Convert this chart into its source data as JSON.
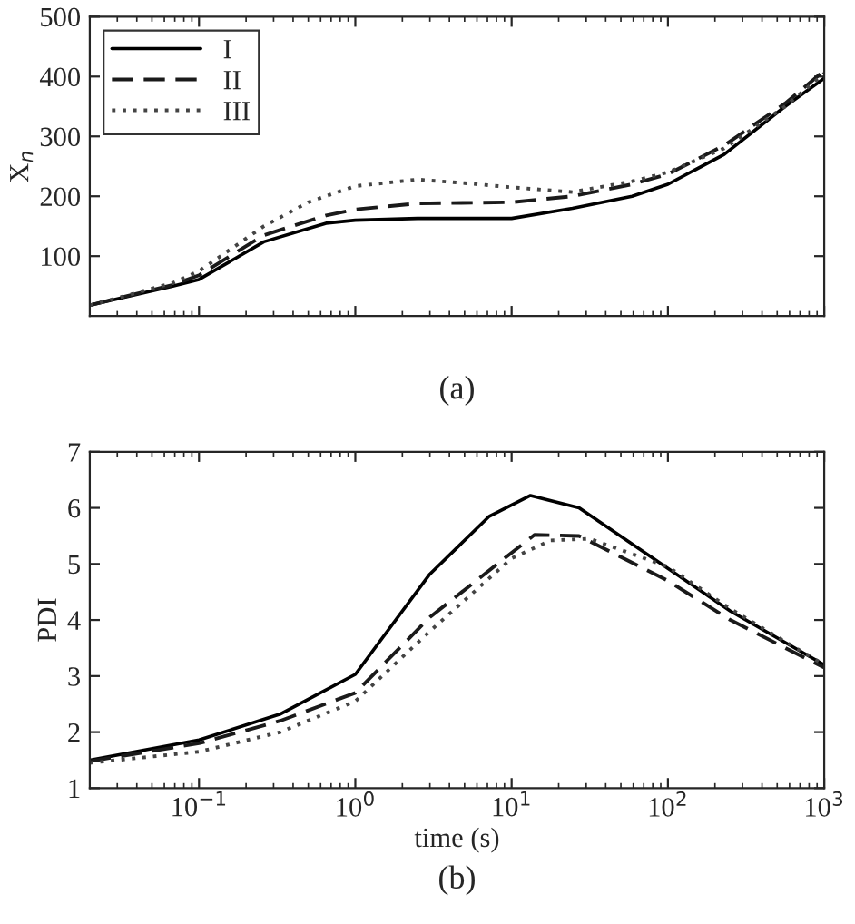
{
  "chart_data": [
    {
      "type": "line",
      "ylabel": "X$_{n}$",
      "annotations": [
        "(a)"
      ],
      "log": "x",
      "xlim": [
        0.02,
        1000
      ],
      "ylim": [
        0,
        500
      ],
      "yticks": [
        100,
        200,
        300,
        400,
        500
      ],
      "tick_labels": "y",
      "legend": "top left",
      "grid": false,
      "series": [
        {
          "name": "I",
          "color": "#000000",
          "line_style": "solid",
          "x": [
            0.02,
            0.068,
            0.1,
            0.26,
            0.65,
            1,
            2.5,
            10,
            24.5,
            59,
            100,
            229,
            562,
            1000
          ],
          "values": [
            18,
            50,
            61,
            124,
            155,
            160,
            163,
            163,
            180,
            200,
            220,
            270,
            350,
            397
          ]
        },
        {
          "name": "II",
          "color": "#1a1a1a",
          "line_style": "dashed",
          "x": [
            0.02,
            0.068,
            0.1,
            0.26,
            0.65,
            1,
            2.5,
            10,
            24.5,
            59,
            100,
            229,
            562,
            1000
          ],
          "values": [
            18,
            52,
            68,
            135,
            168,
            178,
            188,
            190,
            200,
            220,
            237,
            285,
            355,
            410
          ]
        },
        {
          "name": "III",
          "color": "#444444",
          "line_style": "dotted",
          "x": [
            0.02,
            0.068,
            0.1,
            0.26,
            0.5,
            1,
            2.5,
            5,
            10,
            24.5,
            59,
            100,
            229,
            562,
            1000
          ],
          "values": [
            18,
            55,
            75,
            150,
            190,
            217,
            228,
            222,
            215,
            207,
            225,
            240,
            280,
            350,
            405
          ]
        }
      ]
    },
    {
      "type": "line",
      "xlabel": "time (s)",
      "ylabel": "PDI",
      "annotations": [
        "(b)"
      ],
      "log": "x",
      "xlim": [
        0.02,
        1000
      ],
      "ylim": [
        1,
        7
      ],
      "yticks": [
        1,
        2,
        3,
        4,
        5,
        6,
        7
      ],
      "xticks": [
        {
          "value": 0.1,
          "label": "10$^{−1}$"
        },
        {
          "value": 1,
          "label": "10$^{0}$"
        },
        {
          "value": 10,
          "label": "10$^{1}$"
        },
        {
          "value": 100,
          "label": "10$^{2}$"
        },
        {
          "value": 1000,
          "label": "10$^{3}$"
        }
      ],
      "grid": false,
      "series": [
        {
          "color": "#000000",
          "line_style": "solid",
          "x": [
            0.02,
            0.1,
            0.33,
            1,
            3,
            7.2,
            13.2,
            27,
            100,
            251,
            1000
          ],
          "values": [
            1.5,
            1.86,
            2.32,
            3.03,
            4.82,
            5.85,
            6.22,
            6.0,
            4.92,
            4.16,
            3.2
          ]
        },
        {
          "color": "#1a1a1a",
          "line_style": "dashed",
          "x": [
            0.02,
            0.1,
            0.33,
            1,
            3,
            14,
            27,
            100,
            251,
            1000
          ],
          "values": [
            1.48,
            1.8,
            2.2,
            2.7,
            4.05,
            5.52,
            5.5,
            4.7,
            4.0,
            3.15
          ]
        },
        {
          "color": "#444444",
          "line_style": "dotted",
          "x": [
            0.02,
            0.1,
            0.33,
            1,
            3,
            10,
            17.8,
            31.6,
            100,
            251,
            1000
          ],
          "values": [
            1.45,
            1.65,
            2.0,
            2.55,
            3.8,
            5.1,
            5.42,
            5.45,
            4.95,
            4.2,
            3.2
          ]
        }
      ]
    }
  ]
}
